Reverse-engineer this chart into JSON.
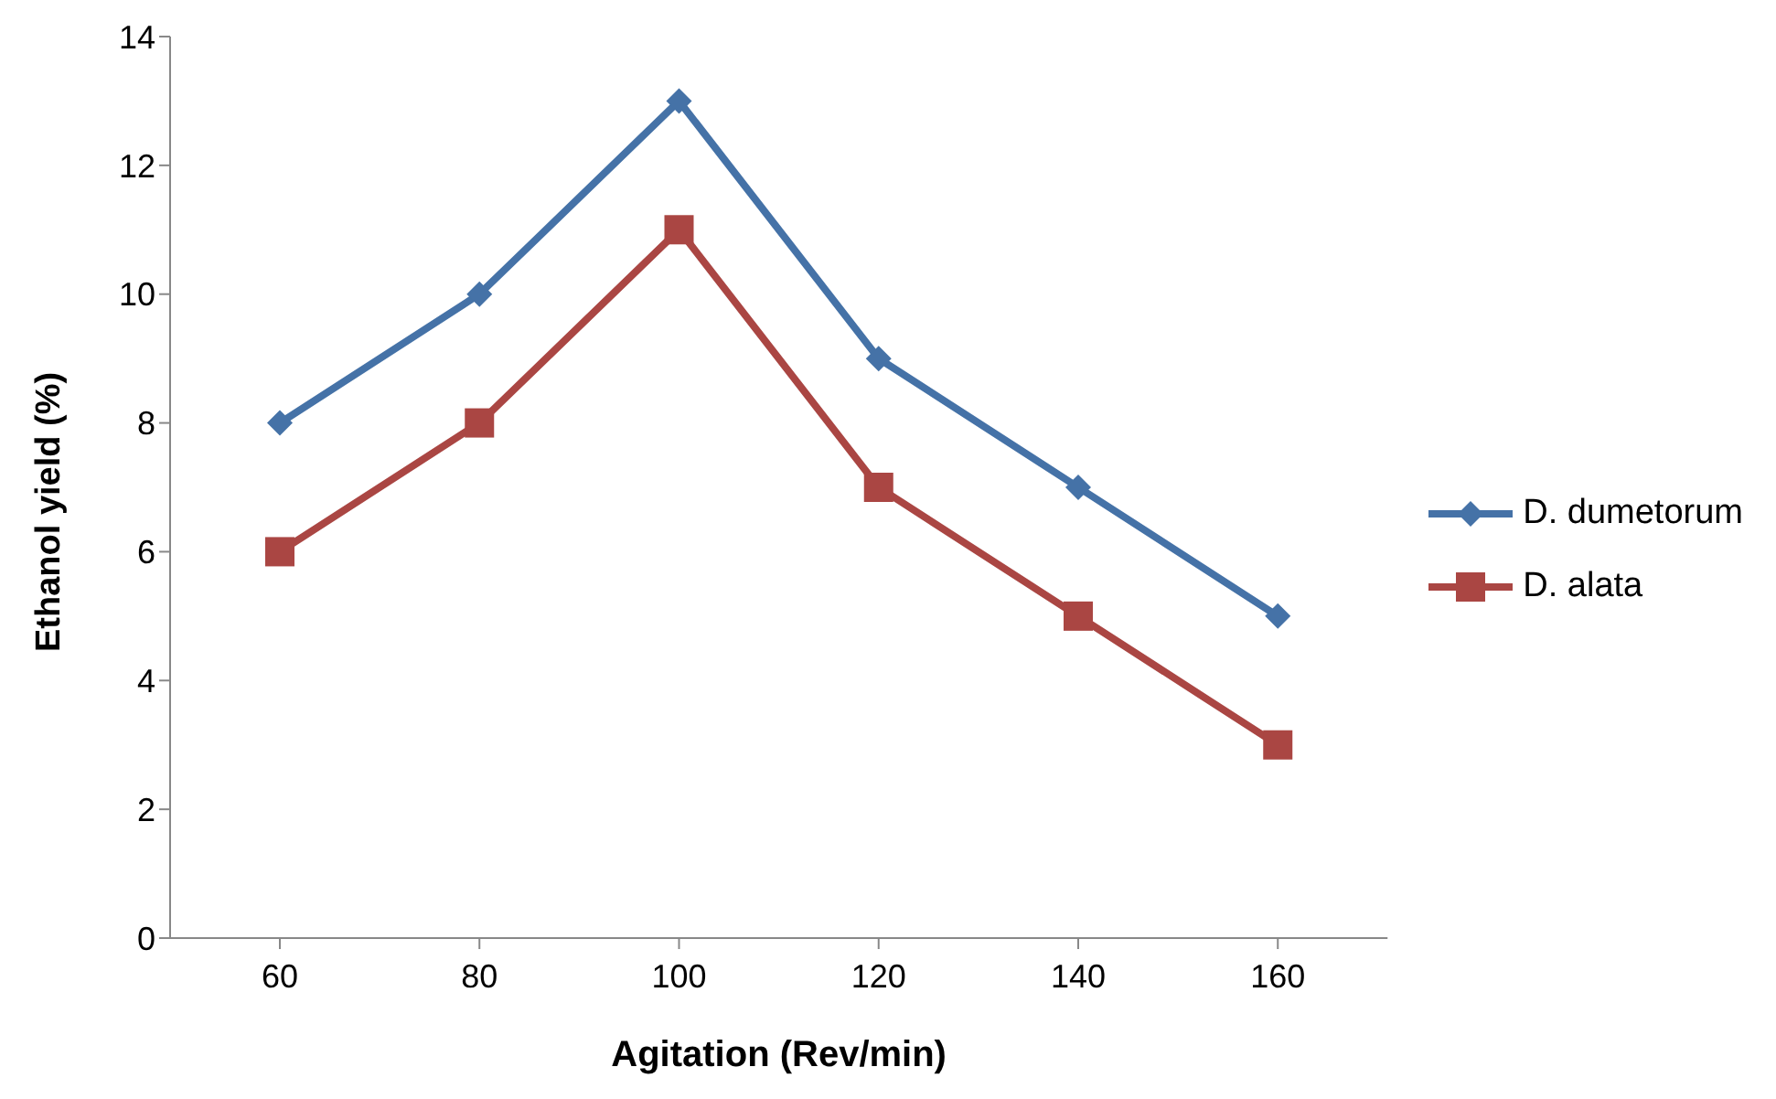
{
  "chart_data": {
    "type": "line",
    "xlabel": "Agitation (Rev/min)",
    "ylabel": "Ethanol yield  (%)",
    "categories": [
      "60",
      "80",
      "100",
      "120",
      "140",
      "160"
    ],
    "series": [
      {
        "name": "D. dumetorum",
        "color": "#4572a7",
        "values": [
          8,
          10,
          13,
          9,
          7,
          5
        ],
        "marker": "diamond"
      },
      {
        "name": "D. alata",
        "color": "#aa4643",
        "values": [
          6,
          8,
          11,
          7,
          5,
          3
        ],
        "marker": "square"
      }
    ],
    "ylim": [
      0,
      14
    ],
    "yticks": [
      0,
      2,
      4,
      6,
      8,
      10,
      12,
      14
    ],
    "grid": false,
    "legend": "right",
    "line_style": "solid"
  }
}
